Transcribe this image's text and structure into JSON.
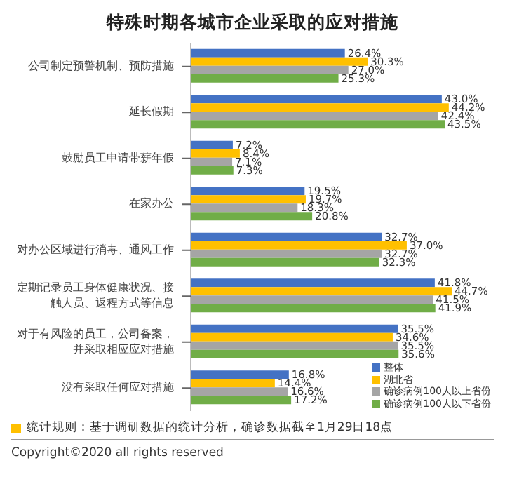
{
  "chart_data": {
    "type": "bar",
    "orientation": "horizontal",
    "title": "特殊时期各城市企业采取的应对措施",
    "categories": [
      "公司制定预警机制、预防措施",
      "延长假期",
      "鼓励员工申请带薪年假",
      "在家办公",
      "对办公区域进行消毒、通风工作",
      "定期记录员工身体健康状况、接触人员、返程方式等信息",
      "对于有风险的员工，公司备案，并采取相应应对措施",
      "没有采取任何应对措施"
    ],
    "series": [
      {
        "name": "整体",
        "color": "#4472c4",
        "values": [
          26.4,
          43.0,
          7.2,
          19.5,
          32.7,
          41.8,
          35.5,
          16.8
        ],
        "value_labels": [
          "26.4%",
          "43.0%",
          "7.2%",
          "19.5%",
          "32.7%",
          "41.8%",
          "35.5%",
          "16.8%"
        ]
      },
      {
        "name": "湖北省",
        "color": "#ffc000",
        "values": [
          30.3,
          44.2,
          8.4,
          19.7,
          37.0,
          44.7,
          34.6,
          14.4
        ],
        "value_labels": [
          "30.3%",
          "44.2%",
          "8.4%",
          "19.7%",
          "37.0%",
          "44.7%",
          "34.6%",
          "14.4%"
        ]
      },
      {
        "name": "确诊病例100人以上省份",
        "color": "#a5a5a5",
        "values": [
          27.0,
          42.4,
          7.1,
          18.3,
          32.7,
          41.5,
          35.5,
          16.6
        ],
        "value_labels": [
          "27.0%",
          "42.4%",
          "7.1%",
          "18.3%",
          "32.7%",
          "41.5%",
          "35.5%",
          "16.6%"
        ]
      },
      {
        "name": "确诊病例100人以下省份",
        "color": "#70ad47",
        "values": [
          25.3,
          43.5,
          7.3,
          20.8,
          32.3,
          41.9,
          35.6,
          17.2
        ],
        "value_labels": [
          "25.3%",
          "43.5%",
          "7.3%",
          "20.8%",
          "32.3%",
          "41.9%",
          "35.6%",
          "17.2%"
        ]
      }
    ],
    "legend": "bottom right",
    "annotations": [
      "统计规则：基于调研数据的统计分析，确诊数据截至1月29日18点",
      "Copyright©2020 all rights reserved"
    ]
  }
}
